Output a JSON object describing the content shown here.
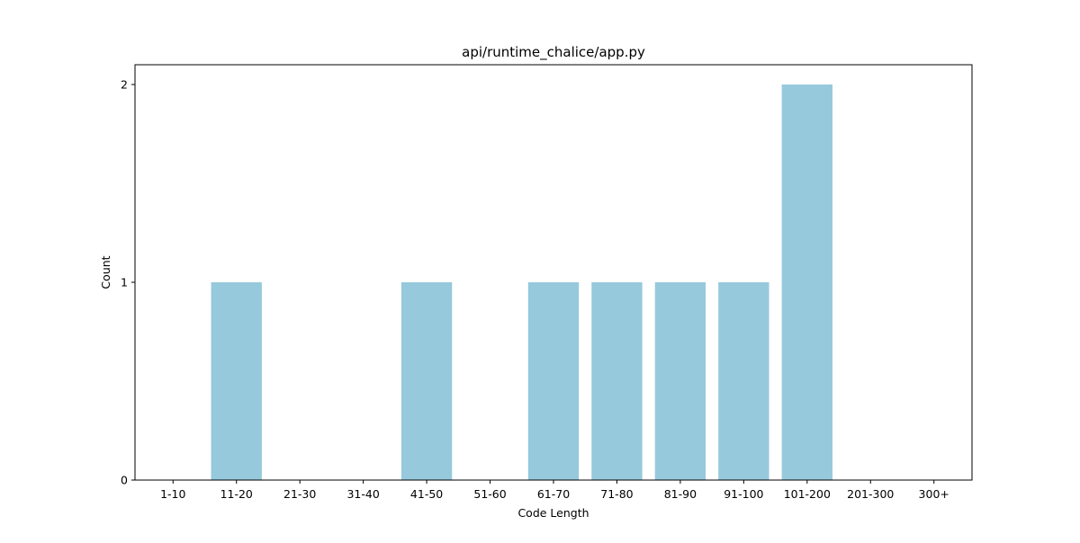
{
  "chart_data": {
    "type": "bar",
    "title": "api/runtime_chalice/app.py",
    "xlabel": "Code Length",
    "ylabel": "Count",
    "categories": [
      "1-10",
      "11-20",
      "21-30",
      "31-40",
      "41-50",
      "51-60",
      "61-70",
      "71-80",
      "81-90",
      "91-100",
      "101-200",
      "201-300",
      "300+"
    ],
    "values": [
      0,
      1,
      0,
      0,
      1,
      0,
      1,
      1,
      1,
      1,
      2,
      0,
      0
    ],
    "yticks": [
      0,
      1,
      2
    ],
    "ylim": [
      0,
      2.1
    ],
    "grid": false,
    "bar_color": "#96c9dc"
  }
}
